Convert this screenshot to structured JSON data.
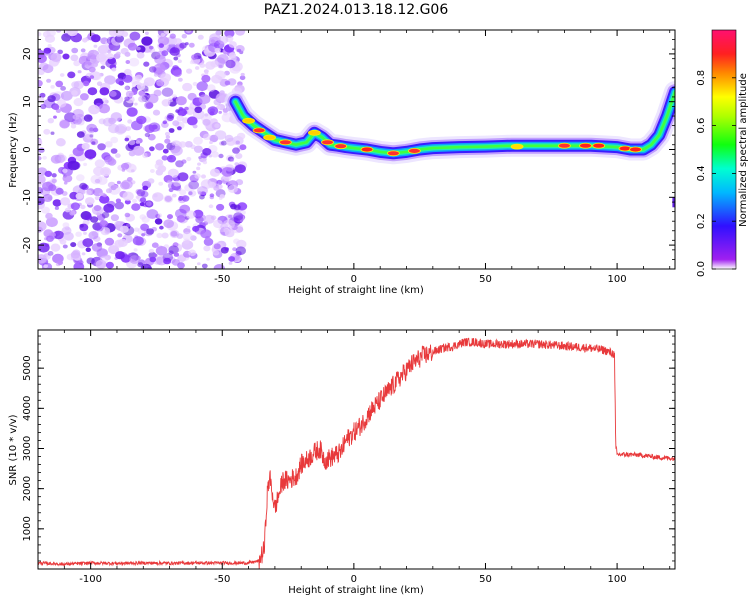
{
  "title": "PAZ1.2024.013.18.12.G06",
  "chart_data": [
    {
      "type": "heatmap",
      "xlabel": "Height of straight line (km)",
      "ylabel": "Frequency (Hz)",
      "xlim": [
        -120,
        122
      ],
      "ylim": [
        -25,
        25
      ],
      "xticks": [
        -100,
        -50,
        0,
        50,
        100
      ],
      "yticks": [
        -20,
        -10,
        0,
        10,
        20
      ],
      "colorbar_label": "Normalized spectral amplitude",
      "colorbar_ticks": [
        "0.0",
        "0.2",
        "0.4",
        "0.6",
        "0.8"
      ],
      "colormap": "rainbow (white-violet-blue-cyan-green-yellow-orange-red-pink)",
      "noise_region_x": [
        -120,
        -42
      ],
      "ridge": {
        "x": [
          -45,
          -42,
          -38,
          -34,
          -30,
          -26,
          -22,
          -18,
          -15,
          -12,
          -9,
          -6,
          -3,
          0,
          5,
          10,
          15,
          20,
          25,
          30,
          40,
          50,
          60,
          70,
          80,
          90,
          100,
          105,
          110,
          113,
          116,
          119,
          122
        ],
        "y": [
          10,
          7,
          5,
          3.5,
          2,
          1.5,
          1,
          1.5,
          3.5,
          2.5,
          1,
          0.8,
          0.5,
          0.3,
          0,
          -0.5,
          -0.8,
          -0.5,
          0,
          0.3,
          0.5,
          0.6,
          0.8,
          0.8,
          0.8,
          0.8,
          0.5,
          0,
          0,
          1,
          3,
          7,
          12
        ]
      }
    },
    {
      "type": "line",
      "xlabel": "Height of straight line (km)",
      "ylabel": "SNR (10 * v/v)",
      "xlim": [
        -120,
        122
      ],
      "ylim": [
        0,
        5950
      ],
      "xticks": [
        -100,
        -50,
        0,
        50,
        100
      ],
      "yticks": [
        1000,
        2000,
        3000,
        4000,
        5000
      ],
      "color": "#e8393b",
      "series": [
        {
          "x": [
            -120,
            -110,
            -100,
            -90,
            -80,
            -70,
            -60,
            -50,
            -40,
            -36,
            -34,
            -33,
            -32,
            -30,
            -27,
            -25,
            -22,
            -20,
            -18,
            -15,
            -13,
            -11,
            -8,
            -5,
            -3,
            0,
            3,
            6,
            10,
            14,
            18,
            22,
            26,
            30,
            34,
            38,
            42,
            46,
            50,
            60,
            70,
            80,
            90,
            95,
            99,
            99.5,
            100,
            105,
            110,
            115,
            122
          ],
          "y": [
            150,
            120,
            150,
            140,
            150,
            145,
            150,
            150,
            150,
            200,
            500,
            1800,
            2300,
            1500,
            2200,
            2200,
            2300,
            2600,
            2700,
            2900,
            3000,
            2700,
            2800,
            2900,
            3200,
            3400,
            3600,
            3900,
            4200,
            4500,
            4800,
            5100,
            5300,
            5400,
            5500,
            5550,
            5650,
            5650,
            5600,
            5600,
            5600,
            5550,
            5500,
            5450,
            5350,
            3000,
            2850,
            2850,
            2830,
            2780,
            2750
          ]
        }
      ]
    }
  ]
}
